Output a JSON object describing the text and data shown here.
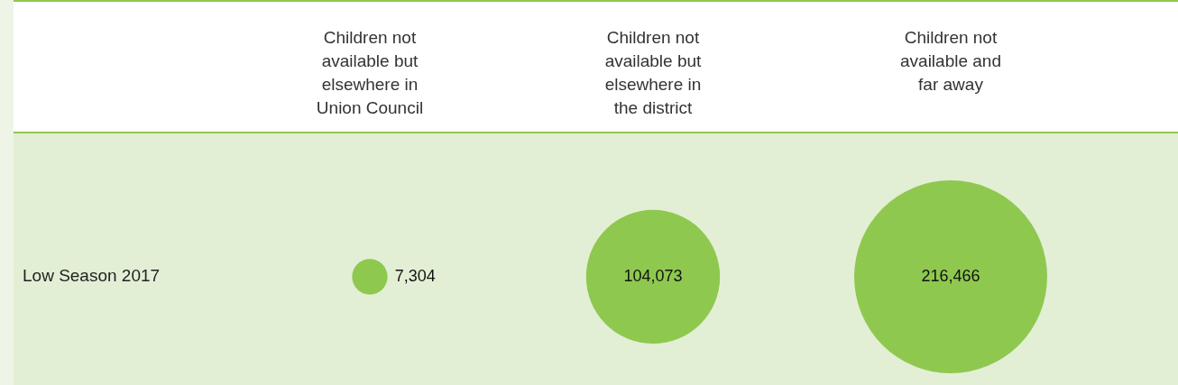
{
  "chart_data": {
    "type": "other",
    "categories": [
      "Children not available but elsewhere in Union Council",
      "Children not available but elsewhere in the district",
      "Children not available and far away"
    ],
    "series": [
      {
        "name": "Low Season 2017",
        "color": "#8fc84f",
        "values": [
          7304,
          104073,
          216466
        ],
        "value_labels": [
          "7,304",
          "104,073",
          "216,466"
        ]
      }
    ]
  }
}
